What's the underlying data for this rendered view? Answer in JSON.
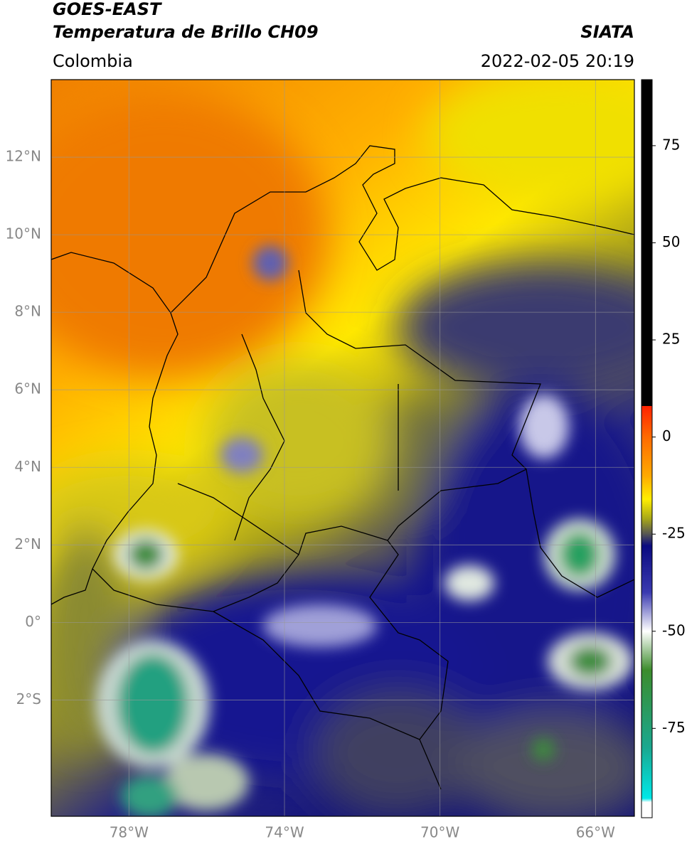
{
  "header": {
    "title_line1": "GOES-EAST",
    "title_line2": "Temperatura de Brillo CH09",
    "source": "SIATA",
    "region": "Colombia",
    "datetime": "2022-02-05 20:19"
  },
  "map": {
    "lon_lim": [
      -80,
      -65
    ],
    "lat_lim": [
      -5,
      14
    ],
    "lon_ticks": [
      {
        "value": -78,
        "label": "78°W"
      },
      {
        "value": -74,
        "label": "74°W"
      },
      {
        "value": -70,
        "label": "70°W"
      },
      {
        "value": -66,
        "label": "66°W"
      }
    ],
    "lat_ticks": [
      {
        "value": 12,
        "label": "12°N"
      },
      {
        "value": 10,
        "label": "10°N"
      },
      {
        "value": 8,
        "label": "8°N"
      },
      {
        "value": 6,
        "label": "6°N"
      },
      {
        "value": 4,
        "label": "4°N"
      },
      {
        "value": 2,
        "label": "2°N"
      },
      {
        "value": 0,
        "label": "0°"
      },
      {
        "value": -2,
        "label": "2°S"
      }
    ],
    "grid": true
  },
  "colorbar": {
    "lim": [
      -98,
      92
    ],
    "ticks": [
      75,
      50,
      25,
      0,
      -25,
      -50,
      -75
    ],
    "colormap": [
      {
        "value": 92,
        "color": "#000000"
      },
      {
        "value": 8,
        "color": "#000000"
      },
      {
        "value": 8,
        "color": "#ff2200"
      },
      {
        "value": 0,
        "color": "#ff6a00"
      },
      {
        "value": -10,
        "color": "#ffaa00"
      },
      {
        "value": -16,
        "color": "#ffee00"
      },
      {
        "value": -21,
        "color": "#a8a818"
      },
      {
        "value": -25,
        "color": "#555555"
      },
      {
        "value": -28,
        "color": "#0a0a80"
      },
      {
        "value": -40,
        "color": "#3a3ab0"
      },
      {
        "value": -50,
        "color": "#ffffff"
      },
      {
        "value": -60,
        "color": "#3c8c2c"
      },
      {
        "value": -80,
        "color": "#1aa890"
      },
      {
        "value": -93,
        "color": "#00e8e8"
      },
      {
        "value": -94,
        "color": "#ffffff"
      },
      {
        "value": -98,
        "color": "#ffffff"
      }
    ]
  }
}
